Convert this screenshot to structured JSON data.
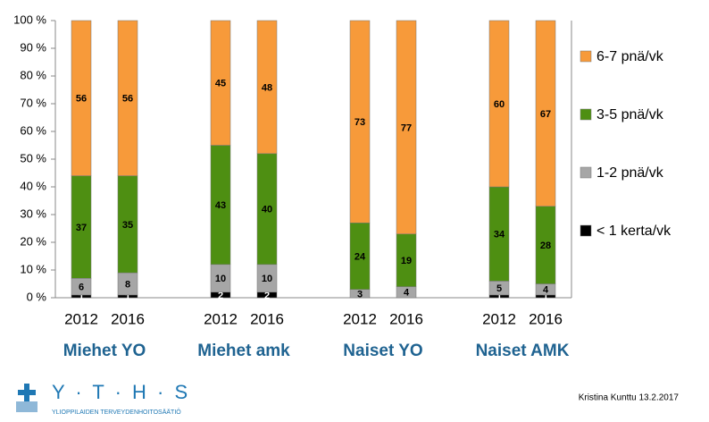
{
  "chart_data": {
    "type": "stacked_bar",
    "categories": [
      "2012",
      "2016",
      "2012",
      "2016",
      "2012",
      "2016",
      "2012",
      "2016"
    ],
    "groups": [
      "Miehet YO",
      "Miehet amk",
      "Naiset YO",
      "Naiset AMK"
    ],
    "series": [
      {
        "name": "< 1 kerta/vk",
        "color": "#000000",
        "values": [
          1,
          1,
          2,
          2,
          0,
          0,
          1,
          1
        ]
      },
      {
        "name": "1-2 pnä/vk",
        "color": "#a6a6a6",
        "values": [
          6,
          8,
          10,
          10,
          3,
          4,
          5,
          4
        ]
      },
      {
        "name": "3-5 pnä/vk",
        "color": "#4e8f12",
        "values": [
          37,
          35,
          43,
          40,
          24,
          19,
          34,
          28
        ]
      },
      {
        "name": "6-7 pnä/vk",
        "color": "#f79a3a",
        "values": [
          56,
          56,
          45,
          48,
          73,
          77,
          60,
          67
        ]
      }
    ],
    "ylim": [
      0,
      100
    ],
    "yticks": [
      {
        "value": 0,
        "label": "0 %"
      },
      {
        "value": 10,
        "label": "10 %"
      },
      {
        "value": 20,
        "label": "20 %"
      },
      {
        "value": 30,
        "label": "30 %"
      },
      {
        "value": 40,
        "label": "40 %"
      },
      {
        "value": 50,
        "label": "50 %"
      },
      {
        "value": 60,
        "label": "60 %"
      },
      {
        "value": 70,
        "label": "70 %"
      },
      {
        "value": 80,
        "label": "80 %"
      },
      {
        "value": 90,
        "label": "90 %"
      },
      {
        "value": 100,
        "label": "100 %"
      }
    ],
    "legend": "right"
  },
  "footer": {
    "logo": "Y · T · H · S",
    "organization": "YLIOPPILAIDEN TERVEYDENHOITOSÄÄTIÖ",
    "credit": "Kristina Kunttu 13.2.2017"
  }
}
